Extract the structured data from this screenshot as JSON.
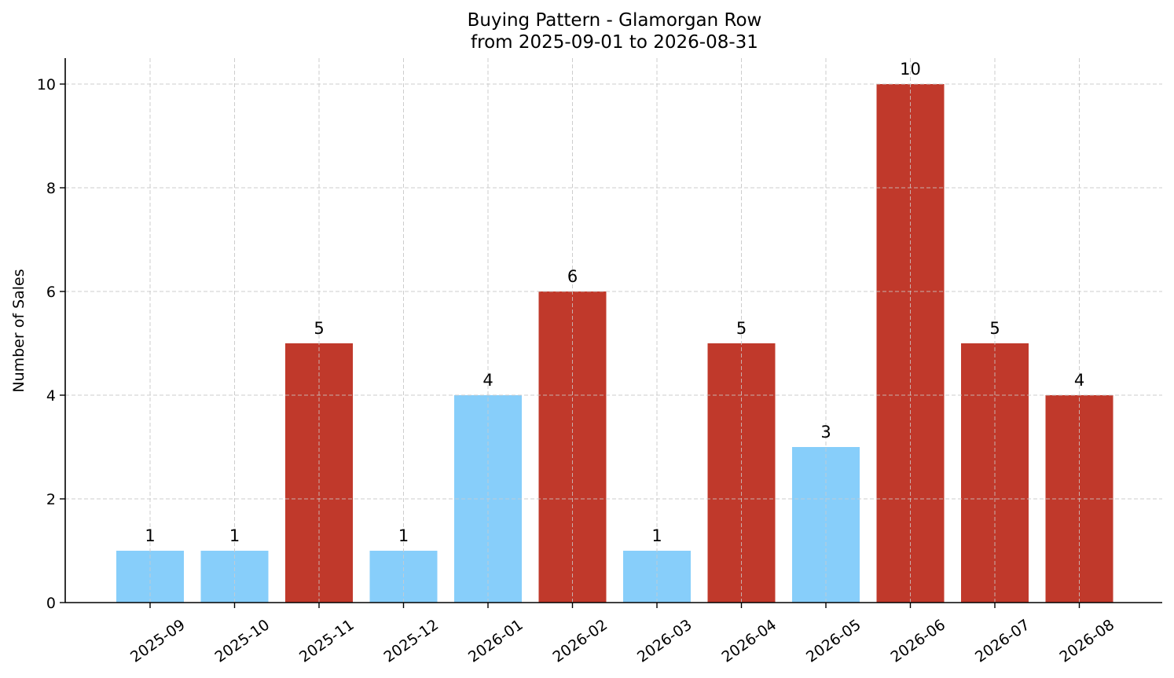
{
  "chart_data": {
    "type": "bar",
    "title": "Buying Pattern - Glamorgan Row",
    "subtitle": "from 2025-09-01 to 2026-08-31",
    "xlabel": "",
    "ylabel": "Number of Sales",
    "categories": [
      "2025-09",
      "2025-10",
      "2025-11",
      "2025-12",
      "2026-01",
      "2026-02",
      "2026-03",
      "2026-04",
      "2026-05",
      "2026-06",
      "2026-07",
      "2026-08"
    ],
    "values": [
      1,
      1,
      5,
      1,
      4,
      6,
      1,
      5,
      3,
      10,
      5,
      4
    ],
    "bar_colors": [
      "#87cefa",
      "#87cefa",
      "#c0392b",
      "#87cefa",
      "#87cefa",
      "#c0392b",
      "#87cefa",
      "#c0392b",
      "#87cefa",
      "#c0392b",
      "#c0392b",
      "#c0392b"
    ],
    "ylim": [
      0,
      10.5
    ],
    "yticks": [
      0,
      2,
      4,
      6,
      8,
      10
    ],
    "grid": true,
    "data_labels": true
  }
}
